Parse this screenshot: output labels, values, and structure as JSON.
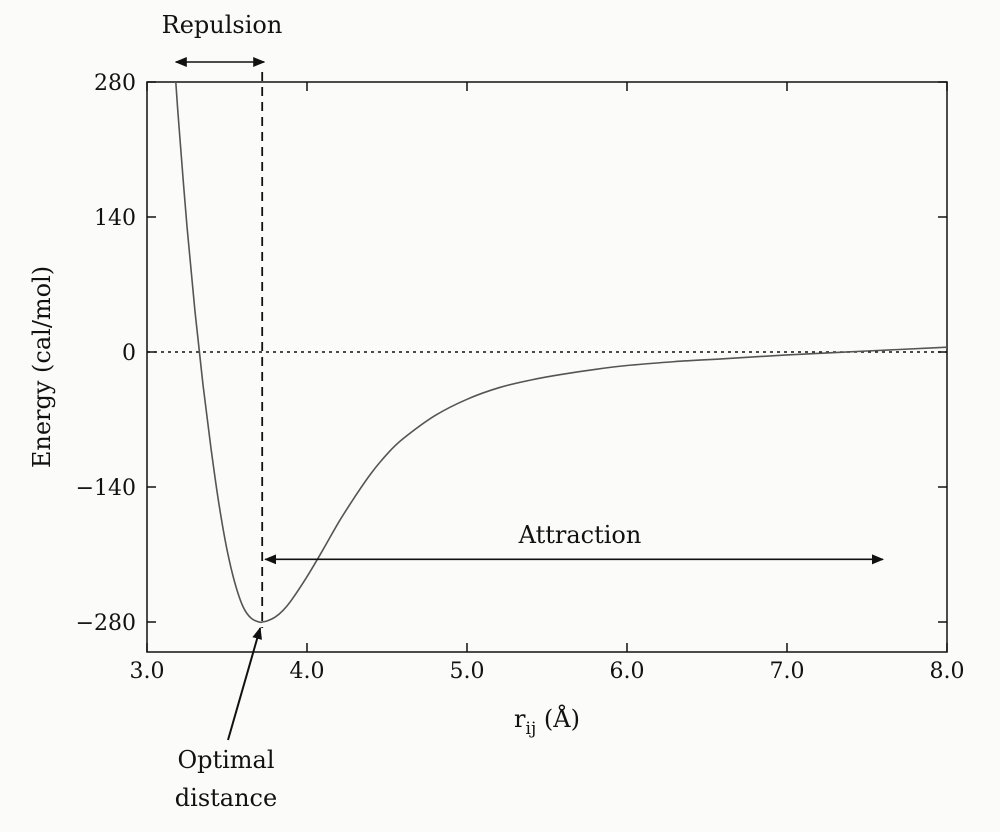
{
  "chart_data": {
    "type": "line",
    "title": "",
    "xlabel": "r",
    "xlabel_sub": "ij",
    "xlabel_unit": " (Å)",
    "ylabel": "Energy (cal/mol)",
    "xlim": [
      3.0,
      8.0
    ],
    "ylim": [
      -310,
      280
    ],
    "x_ticks": [
      3.0,
      4.0,
      5.0,
      6.0,
      7.0,
      8.0
    ],
    "x_tick_labels": [
      "3.0",
      "4.0",
      "5.0",
      "6.0",
      "7.0",
      "8.0"
    ],
    "y_ticks": [
      280,
      140,
      0,
      -140,
      -280
    ],
    "y_tick_labels": [
      "280",
      "140",
      "0",
      "−140",
      "−280"
    ],
    "grid": false,
    "legend": "none",
    "series": [
      {
        "color": "#555555",
        "x": [
          3.18,
          3.2,
          3.25,
          3.3,
          3.35,
          3.4,
          3.45,
          3.5,
          3.55,
          3.6,
          3.65,
          3.7,
          3.72,
          3.75,
          3.8,
          3.85,
          3.9,
          4.0,
          4.1,
          4.2,
          4.3,
          4.4,
          4.5,
          4.6,
          4.8,
          5.0,
          5.2,
          5.4,
          5.6,
          5.8,
          6.0,
          6.3,
          6.6,
          7.0,
          7.5,
          8.0
        ],
        "y": [
          280,
          234,
          130,
          42,
          -34,
          -100,
          -158,
          -205,
          -240,
          -264,
          -276,
          -280,
          -280,
          -279,
          -275,
          -268,
          -258,
          -233,
          -205,
          -176,
          -150,
          -126,
          -106,
          -90,
          -66,
          -49,
          -37,
          -29,
          -23,
          -18,
          -14,
          -10,
          -7,
          -3,
          1,
          5
        ]
      }
    ],
    "reference_lines": [
      {
        "kind": "horizontal",
        "y": 0,
        "style": "dotted"
      },
      {
        "kind": "vertical",
        "x": 3.72,
        "style": "dashed"
      }
    ],
    "annotations": [
      {
        "name": "repulsion",
        "text": "Repulsion",
        "arrow_x": [
          3.18,
          3.72
        ]
      },
      {
        "name": "attraction",
        "text": "Attraction",
        "arrow_x": [
          3.72,
          7.6
        ],
        "arrow_y": -215
      },
      {
        "name": "optimal",
        "lines": [
          "Optimal",
          "distance"
        ],
        "points_to": [
          3.72,
          -280
        ]
      }
    ]
  }
}
